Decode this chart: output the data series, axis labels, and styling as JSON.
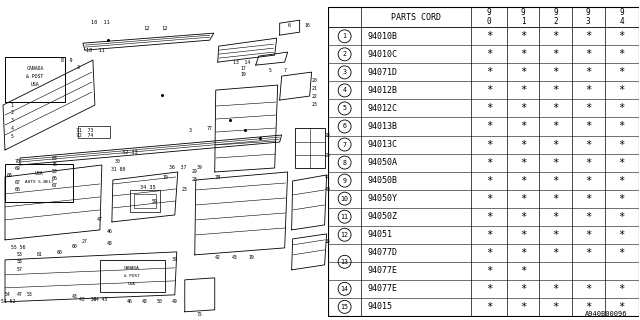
{
  "background_color": "#ffffff",
  "watermark": "A940B00096",
  "table_rows": [
    {
      "num": "1",
      "code": "94010B",
      "stars": [
        true,
        true,
        true,
        true,
        true
      ]
    },
    {
      "num": "2",
      "code": "94010C",
      "stars": [
        true,
        true,
        true,
        true,
        true
      ]
    },
    {
      "num": "3",
      "code": "94071D",
      "stars": [
        true,
        true,
        true,
        true,
        true
      ]
    },
    {
      "num": "4",
      "code": "94012B",
      "stars": [
        true,
        true,
        true,
        true,
        true
      ]
    },
    {
      "num": "5",
      "code": "94012C",
      "stars": [
        true,
        true,
        true,
        true,
        true
      ]
    },
    {
      "num": "6",
      "code": "94013B",
      "stars": [
        true,
        true,
        true,
        true,
        true
      ]
    },
    {
      "num": "7",
      "code": "94013C",
      "stars": [
        true,
        true,
        true,
        true,
        true
      ]
    },
    {
      "num": "8",
      "code": "94050A",
      "stars": [
        true,
        true,
        true,
        true,
        true
      ]
    },
    {
      "num": "9",
      "code": "94050B",
      "stars": [
        true,
        true,
        true,
        true,
        true
      ]
    },
    {
      "num": "10",
      "code": "94050Y",
      "stars": [
        true,
        true,
        true,
        true,
        true
      ]
    },
    {
      "num": "11",
      "code": "94050Z",
      "stars": [
        true,
        true,
        true,
        true,
        true
      ]
    },
    {
      "num": "12",
      "code": "94051",
      "stars": [
        true,
        true,
        true,
        true,
        true
      ]
    },
    {
      "num": "13a",
      "code": "94077D",
      "stars": [
        true,
        true,
        true,
        true,
        true
      ]
    },
    {
      "num": "13b",
      "code": "94077E",
      "stars": [
        true,
        true,
        false,
        false,
        false
      ]
    },
    {
      "num": "14",
      "code": "94077E",
      "stars": [
        true,
        true,
        true,
        true,
        true
      ]
    },
    {
      "num": "15",
      "code": "94015",
      "stars": [
        true,
        true,
        true,
        true,
        true
      ]
    }
  ],
  "col_year_labels": [
    "9\n0",
    "9\n1",
    "9\n2",
    "9\n3",
    "9\n4"
  ]
}
